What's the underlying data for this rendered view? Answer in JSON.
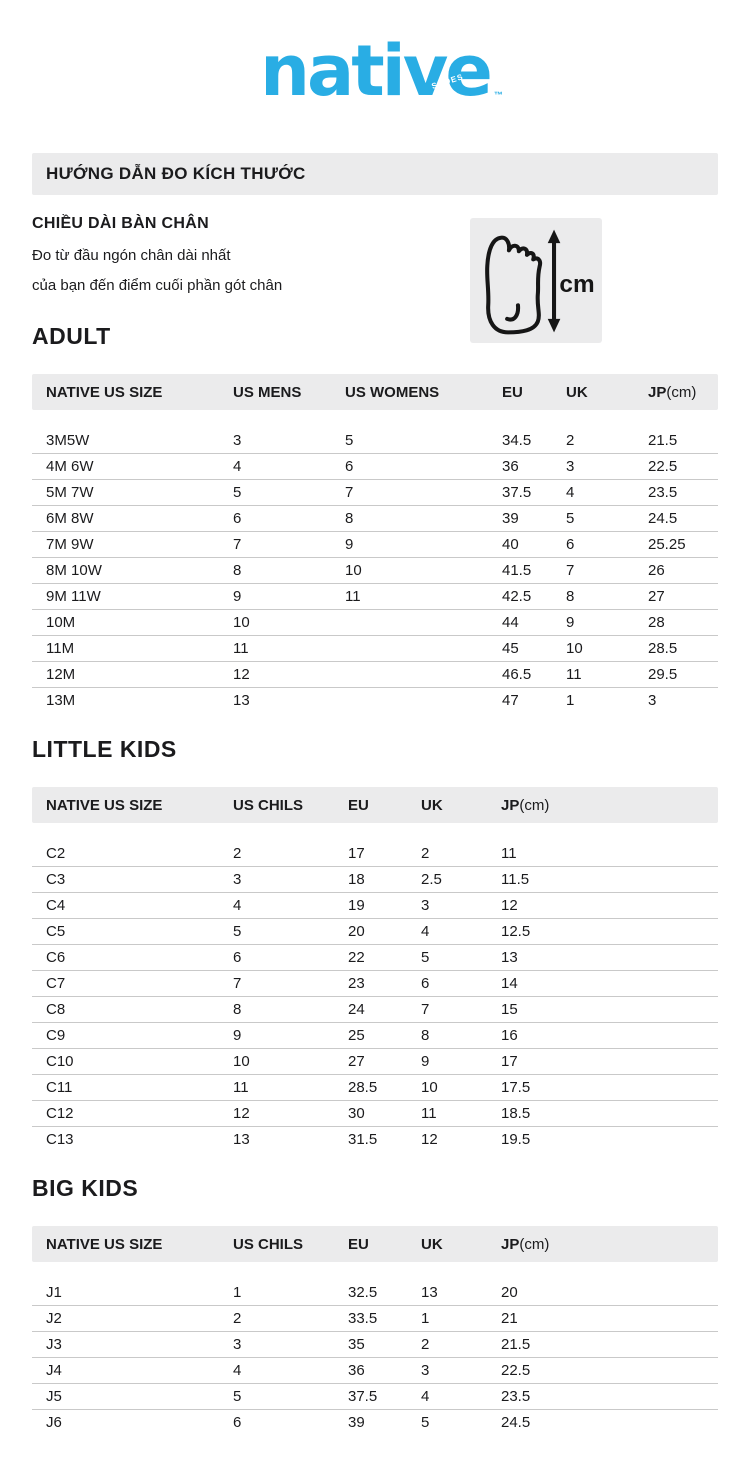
{
  "logo": {
    "brand": "native",
    "sub": "SHOES",
    "tm": "™"
  },
  "guide": {
    "title": "HƯỚNG DẪN ĐO KÍCH THƯỚC"
  },
  "measure": {
    "title": "CHIỀU DÀI BÀN CHÂN",
    "line1": "Đo từ đầu ngón chân dài nhất",
    "line2": "của bạn đến điểm cuối phần gót chân",
    "unit": "cm"
  },
  "colors": {
    "brand_blue": "#29ade4",
    "band_gray": "#ebebec",
    "text": "#1b1b1d",
    "row_border": "#c9c9c9"
  },
  "sections": [
    {
      "title": "ADULT",
      "columns": [
        "NATIVE US SIZE",
        "US MENS",
        "US WOMENS",
        "EU",
        "UK",
        "JP(cm)"
      ],
      "rows": [
        [
          "3M5W",
          "3",
          "5",
          "34.5",
          "2",
          "21.5"
        ],
        [
          "4M 6W",
          "4",
          "6",
          "36",
          "3",
          "22.5"
        ],
        [
          "5M 7W",
          "5",
          "7",
          "37.5",
          "4",
          "23.5"
        ],
        [
          "6M 8W",
          "6",
          "8",
          "39",
          "5",
          "24.5"
        ],
        [
          "7M 9W",
          "7",
          "9",
          "40",
          "6",
          "25.25"
        ],
        [
          "8M 10W",
          "8",
          "10",
          "41.5",
          "7",
          "26"
        ],
        [
          "9M 11W",
          "9",
          "11",
          "42.5",
          "8",
          "27"
        ],
        [
          "10M",
          "10",
          "",
          "44",
          "9",
          "28"
        ],
        [
          "11M",
          "11",
          "",
          "45",
          "10",
          "28.5"
        ],
        [
          "12M",
          "12",
          "",
          "46.5",
          "11",
          "29.5"
        ],
        [
          "13M",
          "13",
          "",
          "47",
          "1",
          "3"
        ]
      ]
    },
    {
      "title": "LITTLE KIDS",
      "columns": [
        "NATIVE US SIZE",
        "US CHILS",
        "EU",
        "UK",
        "JP(cm)"
      ],
      "rows": [
        [
          "C2",
          "2",
          "17",
          "2",
          "11"
        ],
        [
          "C3",
          "3",
          "18",
          "2.5",
          "11.5"
        ],
        [
          "C4",
          "4",
          "19",
          "3",
          "12"
        ],
        [
          "C5",
          "5",
          "20",
          "4",
          "12.5"
        ],
        [
          "C6",
          "6",
          "22",
          "5",
          "13"
        ],
        [
          "C7",
          "7",
          "23",
          "6",
          "14"
        ],
        [
          "C8",
          "8",
          "24",
          "7",
          "15"
        ],
        [
          "C9",
          "9",
          "25",
          "8",
          "16"
        ],
        [
          "C10",
          "10",
          "27",
          "9",
          "17"
        ],
        [
          "C11",
          "11",
          "28.5",
          "10",
          "17.5"
        ],
        [
          "C12",
          "12",
          "30",
          "11",
          "18.5"
        ],
        [
          "C13",
          "13",
          "31.5",
          "12",
          "19.5"
        ]
      ]
    },
    {
      "title": "BIG KIDS",
      "columns": [
        "NATIVE US SIZE",
        "US CHILS",
        "EU",
        "UK",
        "JP(cm)"
      ],
      "rows": [
        [
          "J1",
          "1",
          "32.5",
          "13",
          "20"
        ],
        [
          "J2",
          "2",
          "33.5",
          "1",
          "21"
        ],
        [
          "J3",
          "3",
          "35",
          "2",
          "21.5"
        ],
        [
          "J4",
          "4",
          "36",
          "3",
          "22.5"
        ],
        [
          "J5",
          "5",
          "37.5",
          "4",
          "23.5"
        ],
        [
          "J6",
          "6",
          "39",
          "5",
          "24.5"
        ]
      ]
    }
  ]
}
